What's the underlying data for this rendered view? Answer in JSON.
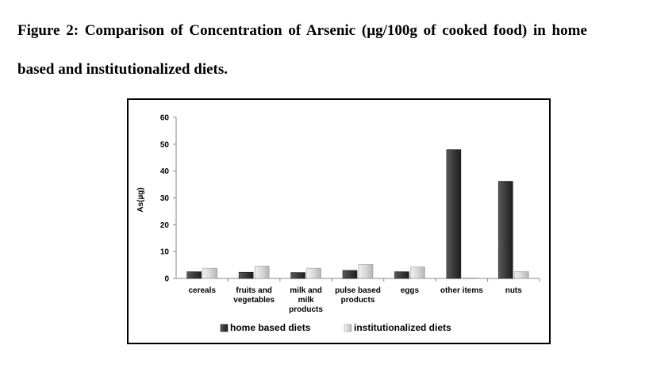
{
  "caption": {
    "line1": "Figure 2: Comparison of Concentration of Arsenic (µg/100g of cooked food) in home",
    "line2": "based and institutionalized  diets."
  },
  "chart_data": {
    "type": "bar",
    "categories": [
      [
        "cereals"
      ],
      [
        "fruits and",
        "vegetables"
      ],
      [
        "milk and",
        "milk",
        "products"
      ],
      [
        "pulse based",
        "products"
      ],
      [
        "eggs"
      ],
      [
        "other items"
      ],
      [
        "nuts"
      ]
    ],
    "series": [
      {
        "name": "home based diets",
        "values": [
          2.5,
          2.3,
          2.2,
          3.0,
          2.5,
          48,
          36.2
        ],
        "color": "#3a3a3a"
      },
      {
        "name": "institutionalized diets",
        "values": [
          3.8,
          4.6,
          3.8,
          5.2,
          4.3,
          0.2,
          2.6
        ],
        "color": "#d4d4d4"
      }
    ],
    "ylabel": "As(µg)",
    "ylim": [
      0,
      60
    ],
    "yticks": [
      0,
      10,
      20,
      30,
      40,
      50,
      60
    ],
    "grid": false,
    "legend_position": "bottom"
  }
}
